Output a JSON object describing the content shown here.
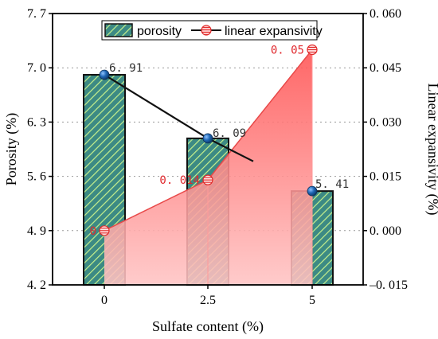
{
  "chart_data": {
    "type": "bar",
    "categories": [
      "0",
      "2.5",
      "5"
    ],
    "xlabel": "Sulfate content (%)",
    "series": [
      {
        "name": "porosity",
        "type": "bar",
        "axis": "left",
        "values": [
          6.91,
          6.09,
          5.41
        ],
        "labels": [
          "6. 91",
          "6. 09",
          "5. 41"
        ],
        "color": "#2f8f86"
      },
      {
        "name": "linear expansivity",
        "type": "area",
        "axis": "right",
        "values": [
          0,
          0.014,
          0.05
        ],
        "labels": [
          "0",
          "0. 014",
          "0. 05"
        ],
        "color": "#ff5a5a"
      }
    ],
    "y_left": {
      "label": "Porosity (%)",
      "ylim": [
        4.2,
        7.7
      ],
      "ticks": [
        4.2,
        4.9,
        5.6,
        6.3,
        7.0,
        7.7
      ],
      "tick_labels": [
        "4. 2",
        "4. 9",
        "5. 6",
        "6. 3",
        "7. 0",
        "7. 7"
      ]
    },
    "y_right": {
      "label": "Linear expansivity (%)",
      "ylim": [
        -0.015,
        0.06
      ],
      "ticks": [
        -0.015,
        0,
        0.015,
        0.03,
        0.045,
        0.06
      ],
      "tick_labels": [
        "–0. 015",
        "0. 000",
        "0. 015",
        "0. 030",
        "0. 045",
        "0. 060"
      ]
    },
    "grid": "dotted-horizontal",
    "legend": "top"
  }
}
